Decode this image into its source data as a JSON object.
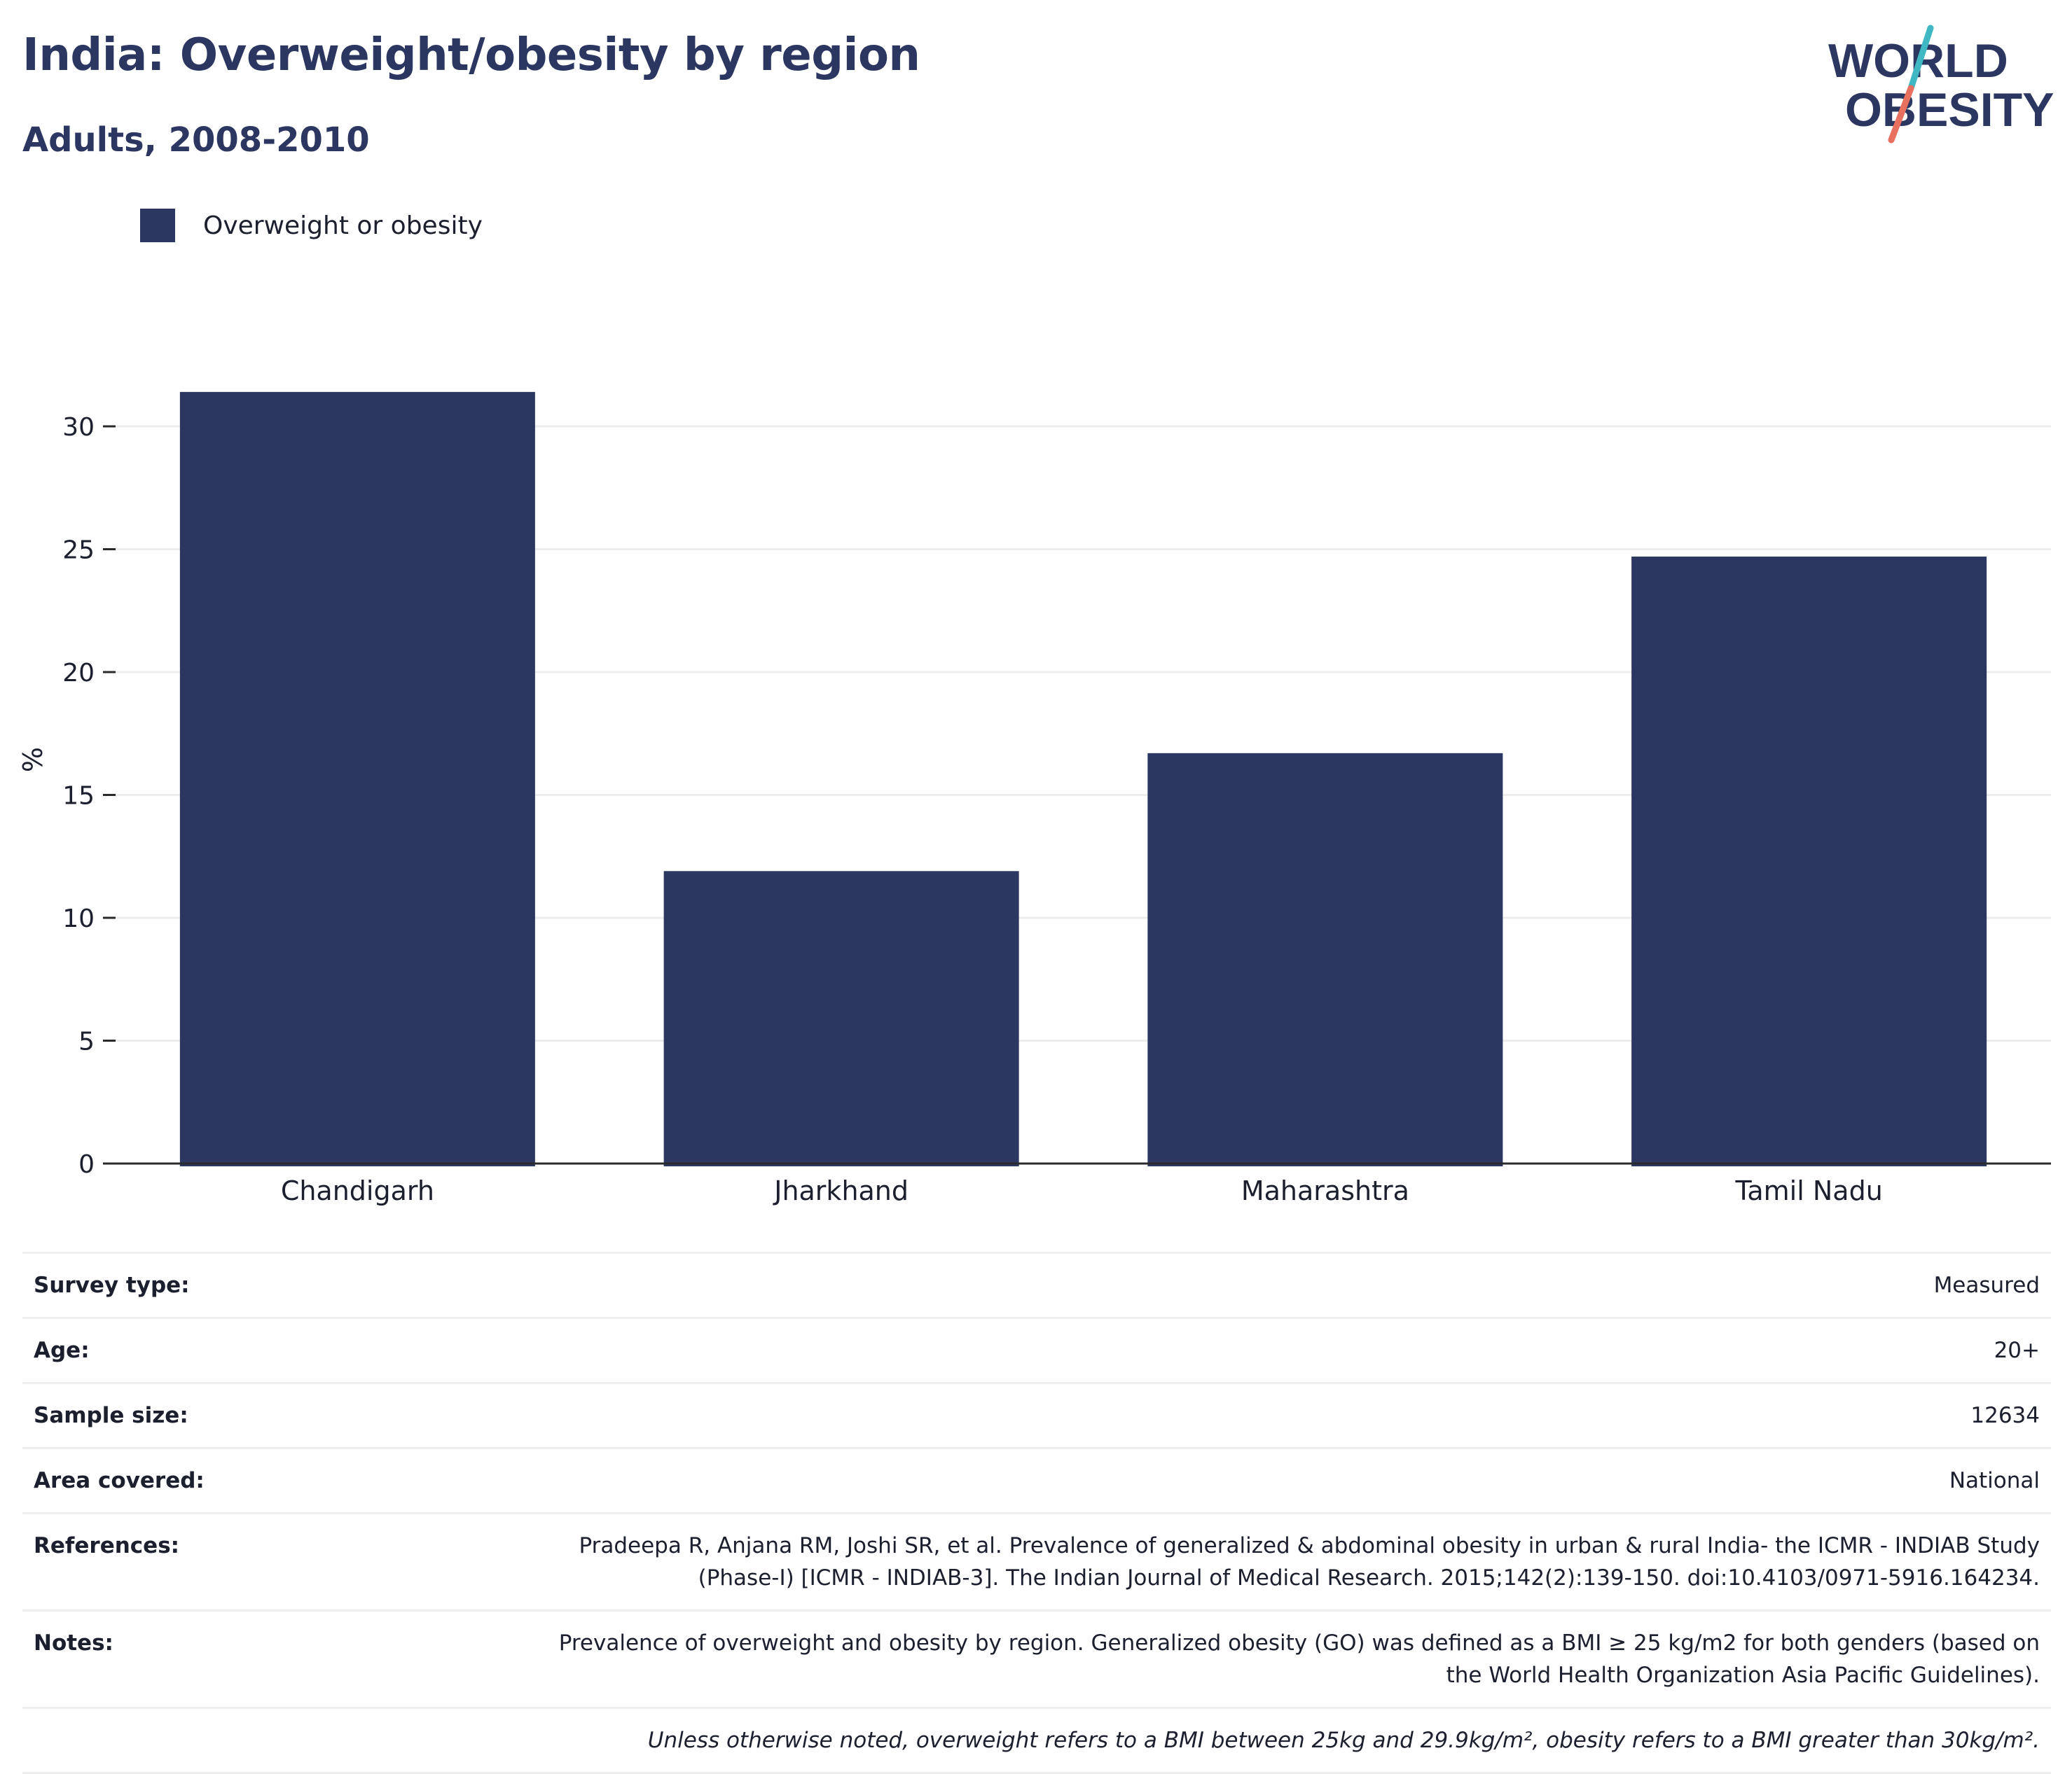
{
  "title": "India: Overweight/obesity by region",
  "subtitle": "Adults, 2008-2010",
  "logo": {
    "line1": "WORLD",
    "line2": "OBESITY",
    "colors": {
      "text": "#2b3661",
      "slash_teal": "#3fb8c4",
      "slash_coral": "#e8705f"
    }
  },
  "legend": {
    "label": "Overweight or obesity",
    "color": "#2b3661"
  },
  "chart_data": {
    "type": "bar",
    "categories": [
      "Chandigarh",
      "Jharkhand",
      "Maharashtra",
      "Tamil Nadu"
    ],
    "series": [
      {
        "name": "Overweight or obesity",
        "values": [
          31.4,
          11.9,
          16.7,
          24.7
        ],
        "color": "#2b3661"
      }
    ],
    "ylabel": "%",
    "yticks": [
      0,
      5,
      10,
      15,
      20,
      25,
      30
    ],
    "ylim": [
      0,
      33
    ],
    "grid": true,
    "legend_position": "top-left"
  },
  "info": [
    {
      "label": "Survey type:",
      "value": "Measured"
    },
    {
      "label": "Age:",
      "value": "20+"
    },
    {
      "label": "Sample size:",
      "value": "12634"
    },
    {
      "label": "Area covered:",
      "value": "National"
    },
    {
      "label": "References:",
      "value": "Pradeepa R, Anjana RM, Joshi SR, et al. Prevalence of generalized & abdominal obesity in urban & rural India- the ICMR - INDIAB Study (Phase-I) [ICMR - INDIAB-3]. The Indian Journal of Medical Research. 2015;142(2):139-150. doi:10.4103/0971-5916.164234."
    },
    {
      "label": "Notes:",
      "value": "Prevalence of overweight and obesity by region. Generalized obesity (GO) was defined as a BMI ≥ 25 kg/m2 for both genders (based on the World Health Organization Asia Pacific Guidelines)."
    }
  ],
  "footnote": "Unless otherwise noted, overweight refers to a BMI between 25kg and 29.9kg/m², obesity refers to a BMI greater than 30kg/m²."
}
